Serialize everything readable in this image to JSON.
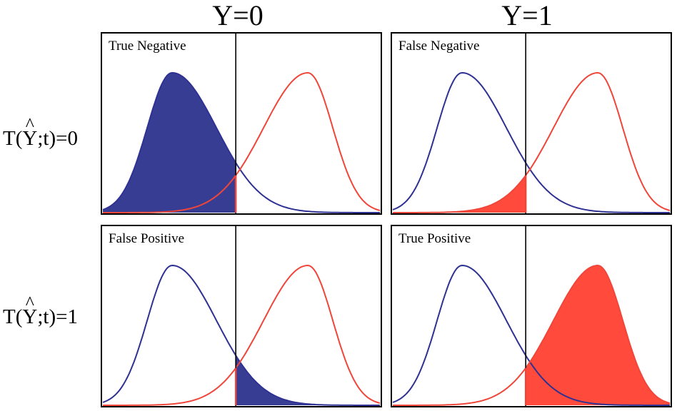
{
  "column_titles": [
    "Y=0",
    "Y=1"
  ],
  "row_labels": [
    {
      "text": "T(Ŷ;t)=0",
      "pre": "T(",
      "hat_letter": "Y",
      "post": ";t)=0"
    },
    {
      "text": "T(Ŷ;t)=1",
      "pre": "T(",
      "hat_letter": "Y",
      "post": ";t)=1"
    }
  ],
  "panels": [
    {
      "label": "True Negative",
      "fill": "blue",
      "fill_side": "left"
    },
    {
      "label": "False Negative",
      "fill": "red",
      "fill_side": "left"
    },
    {
      "label": "False Positive",
      "fill": "blue",
      "fill_side": "right"
    },
    {
      "label": "True Positive",
      "fill": "red",
      "fill_side": "right"
    }
  ],
  "colors": {
    "blue_curve": "#2e3192",
    "blue_fill": "#383d94",
    "red_curve": "#f0463a",
    "red_fill": "#ff4a3c",
    "threshold_line": "#000000"
  }
}
